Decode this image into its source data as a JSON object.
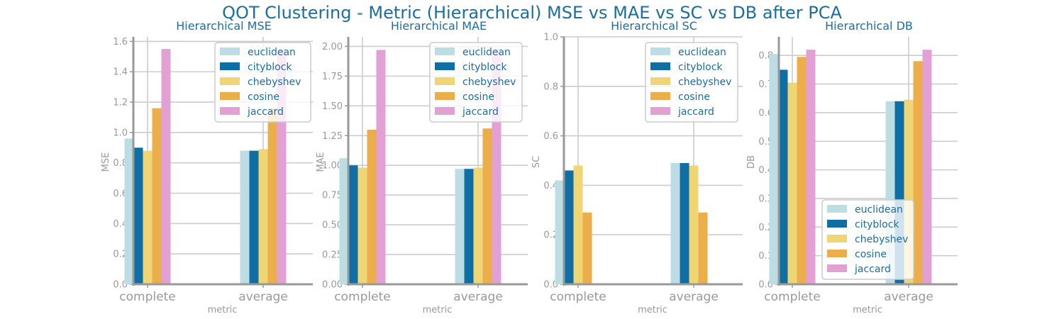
{
  "title": "QOT Clustering - Metric (Hierarchical) MSE vs MAE vs SC vs DB after PCA",
  "colors": {
    "euclidean": "#bcdde3",
    "cityblock": "#0f6ea4",
    "chebyshev": "#f0d574",
    "cosine": "#ecae4b",
    "jaccard": "#e3a0d5",
    "text": "#1a6fa0",
    "axis": "#999999",
    "grid": "#cccccc"
  },
  "chart_data": [
    {
      "type": "bar",
      "title": "Hierarchical MSE",
      "xlabel": "metric",
      "ylabel": "MSE",
      "categories": [
        "complete",
        "average"
      ],
      "ylim": [
        0,
        1.63
      ],
      "yticks": [
        "0.0",
        "0.2",
        "0.4",
        "0.6",
        "0.8",
        "1.0",
        "1.2",
        "1.4",
        "1.6"
      ],
      "legend": "top-right",
      "series": [
        {
          "name": "euclidean",
          "values": [
            0.96,
            0.88
          ]
        },
        {
          "name": "cityblock",
          "values": [
            0.9,
            0.88
          ]
        },
        {
          "name": "chebyshev",
          "values": [
            0.88,
            0.89
          ]
        },
        {
          "name": "cosine",
          "values": [
            1.16,
            1.16
          ]
        },
        {
          "name": "jaccard",
          "values": [
            1.55,
            1.55
          ]
        }
      ]
    },
    {
      "type": "bar",
      "title": "Hierarchical MAE",
      "xlabel": "metric",
      "ylabel": "MAE",
      "categories": [
        "complete",
        "average"
      ],
      "ylim": [
        0,
        2.08
      ],
      "yticks": [
        "0.00",
        "0.25",
        "0.50",
        "0.75",
        "1.00",
        "1.25",
        "1.50",
        "1.75",
        "2.00"
      ],
      "legend": "top-right",
      "series": [
        {
          "name": "euclidean",
          "values": [
            1.06,
            0.97
          ]
        },
        {
          "name": "cityblock",
          "values": [
            1.0,
            0.97
          ]
        },
        {
          "name": "chebyshev",
          "values": [
            0.98,
            0.98
          ]
        },
        {
          "name": "cosine",
          "values": [
            1.3,
            1.31
          ]
        },
        {
          "name": "jaccard",
          "values": [
            1.97,
            1.97
          ]
        }
      ]
    },
    {
      "type": "bar",
      "title": "Hierarchical SC",
      "xlabel": "metric",
      "ylabel": "SC",
      "categories": [
        "complete",
        "average"
      ],
      "ylim": [
        0,
        1.0
      ],
      "yticks": [
        "0.0",
        "0.2",
        "0.4",
        "0.6",
        "0.8",
        "1.0"
      ],
      "legend": "top-right",
      "series": [
        {
          "name": "euclidean",
          "values": [
            0.42,
            0.49
          ]
        },
        {
          "name": "cityblock",
          "values": [
            0.46,
            0.49
          ]
        },
        {
          "name": "chebyshev",
          "values": [
            0.48,
            0.48
          ]
        },
        {
          "name": "cosine",
          "values": [
            0.29,
            0.29
          ]
        },
        {
          "name": "jaccard",
          "values": [
            0,
            0
          ]
        }
      ]
    },
    {
      "type": "bar",
      "title": "Hierarchical DB",
      "xlabel": "metric",
      "ylabel": "DB",
      "categories": [
        "complete",
        "average"
      ],
      "ylim": [
        0,
        0.865
      ],
      "yticks": [
        "0.0",
        "0.1",
        "0.2",
        "0.3",
        "0.4",
        "0.5",
        "0.6",
        "0.7",
        "0.8"
      ],
      "legend": "bottom-right",
      "series": [
        {
          "name": "euclidean",
          "values": [
            0.805,
            0.64
          ]
        },
        {
          "name": "cityblock",
          "values": [
            0.75,
            0.64
          ]
        },
        {
          "name": "chebyshev",
          "values": [
            0.705,
            0.645
          ]
        },
        {
          "name": "cosine",
          "values": [
            0.795,
            0.78
          ]
        },
        {
          "name": "jaccard",
          "values": [
            0.82,
            0.82
          ]
        }
      ]
    }
  ]
}
